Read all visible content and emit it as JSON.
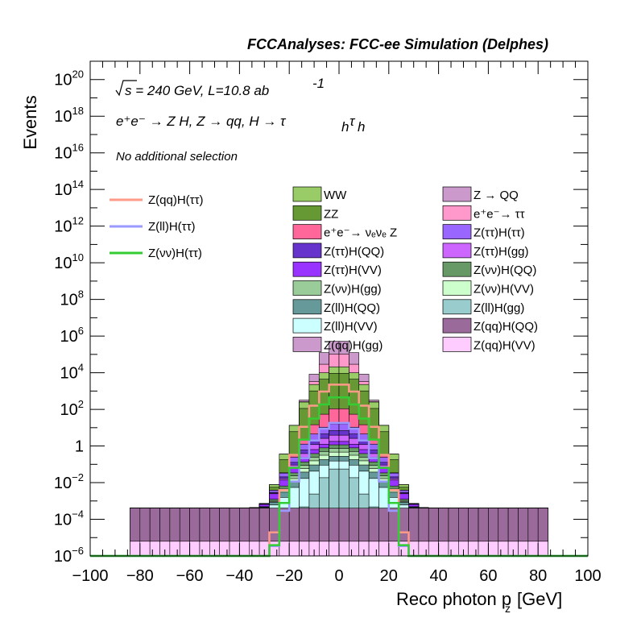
{
  "chart_data": {
    "type": "histogram",
    "title": "FCCAnalyses: FCC-ee Simulation (Delphes)",
    "xlabel": "Reco photon p",
    "xlabel_subscript": "z",
    "xlabel_unit": "[GeV]",
    "ylabel": "Events",
    "y_scale": "log",
    "xlim": [
      -100,
      100
    ],
    "ylim": [
      1e-06,
      1e+21
    ],
    "x_ticks": [
      "−100",
      "−80",
      "−60",
      "−40",
      "−20",
      "0",
      "20",
      "40",
      "60",
      "80",
      "100"
    ],
    "y_ticks": [
      {
        "base": "10",
        "exp": "−6"
      },
      {
        "base": "10",
        "exp": "−4"
      },
      {
        "base": "10",
        "exp": "−2"
      },
      {
        "base": "1",
        "exp": ""
      },
      {
        "base": "10",
        "exp": "2"
      },
      {
        "base": "10",
        "exp": "4"
      },
      {
        "base": "10",
        "exp": "6"
      },
      {
        "base": "10",
        "exp": "8"
      },
      {
        "base": "10",
        "exp": "10"
      },
      {
        "base": "10",
        "exp": "12"
      },
      {
        "base": "10",
        "exp": "14"
      },
      {
        "base": "10",
        "exp": "16"
      },
      {
        "base": "10",
        "exp": "18"
      },
      {
        "base": "10",
        "exp": "20"
      }
    ],
    "annotations": {
      "energy": "s = 240 GeV, L=10.8 ab",
      "energy_exp": "-1",
      "process": "e⁺e⁻ → Z H, Z → qq, H → τ",
      "process_sub1": "h",
      "process_tau2": "τ",
      "process_sub2": "h",
      "selection": "No additional selection"
    },
    "bin_width": 4,
    "stack_bands": [
      {
        "name": "Z(qq)H(VV)",
        "color": "#ffccff",
        "a": -5.2,
        "b": 0,
        "w": 85
      },
      {
        "name": "Z(qq)H(QQ)",
        "color": "#9a6a9a",
        "a": -3.4,
        "b": 0,
        "w": 85
      },
      {
        "name": "Z(ll)H(gg)",
        "color": "#99cccc",
        "a": -1.2,
        "b": 0.015,
        "w": 85
      },
      {
        "name": "Z(ll)H(VV)",
        "color": "#ccffff",
        "a": -1.0,
        "b": 0.004,
        "w": 85
      },
      {
        "name": "Z(ll)H(QQ)",
        "color": "#669999",
        "a": -0.9,
        "b": 0.004,
        "w": 85
      },
      {
        "name": "Z(νν)H(VV)",
        "color": "#ccffcc",
        "a": -0.7,
        "b": 0.005,
        "w": 85
      },
      {
        "name": "Z(νν)H(gg)",
        "color": "#99cc99",
        "a": -0.55,
        "b": 0.005,
        "w": 85
      },
      {
        "name": "Z(νν)H(QQ)",
        "color": "#669966",
        "a": -0.35,
        "b": 0.005,
        "w": 85
      },
      {
        "name": "Z(ττ)H(VV)",
        "color": "#9933ff",
        "a": -0.2,
        "b": 0.004,
        "w": 85
      },
      {
        "name": "Z(ττ)H(gg)",
        "color": "#cc66ff",
        "a": 0.35,
        "b": 0.006,
        "w": 70
      },
      {
        "name": "Z(ττ)H(QQ)",
        "color": "#6633cc",
        "a": 0.5,
        "b": 0.006,
        "w": 70
      },
      {
        "name": "Z(ττ)H(ττ)",
        "color": "#9966ff",
        "a": 1.0,
        "b": 0.006,
        "w": 70
      },
      {
        "name": "e⁺e⁻→ ννZ",
        "color": "#ff6699",
        "a": 2.0,
        "b": 0.01,
        "w": 82
      },
      {
        "name": "ZZ",
        "color": "#669933",
        "a": 4.0,
        "b": 0.01,
        "w": 95
      },
      {
        "name": "WW",
        "color": "#99cc66",
        "a": 4.1,
        "b": 0.01,
        "w": 100
      },
      {
        "name": "e⁺e⁻ → ττ",
        "color": "#ff99cc",
        "a": 5.0,
        "b": 0.02,
        "w": 100
      },
      {
        "name": "Z → QQ",
        "color": "#cc99cc",
        "a": 5.7,
        "b": 0.02,
        "w": 100
      }
    ],
    "signal_lines": [
      {
        "name": "Z(qq)H(ττ)",
        "color": "#ff9988",
        "a": 3.4,
        "b": 0.012,
        "w": 76
      },
      {
        "name": "Z(ll)H(ττ)",
        "color": "#9999ff",
        "a": 1.3,
        "b": 0.01,
        "w": 76
      },
      {
        "name": "Z(νν)H(ττ)",
        "color": "#33cc33",
        "a": 2.7,
        "b": 0.012,
        "w": 76
      }
    ],
    "legend_signals": [
      "Z(qq)H(ττ)",
      "Z(ll)H(ττ)",
      "Z(νν)H(ττ)"
    ],
    "legend_col1": [
      {
        "name": "WW",
        "color": "#99cc66"
      },
      {
        "name": "ZZ",
        "color": "#669933"
      },
      {
        "name": "e⁺e⁻→ νₑνₑ Z",
        "color": "#ff6699"
      },
      {
        "name": "Z(ττ)H(QQ)",
        "color": "#6633cc"
      },
      {
        "name": "Z(ττ)H(VV)",
        "color": "#9933ff"
      },
      {
        "name": "Z(νν)H(gg)",
        "color": "#99cc99"
      },
      {
        "name": "Z(ll)H(QQ)",
        "color": "#669999"
      },
      {
        "name": "Z(ll)H(VV)",
        "color": "#ccffff"
      },
      {
        "name": "Z(qq)H(gg)",
        "color": "#cc99cc"
      }
    ],
    "legend_col2": [
      {
        "name": "Z → QQ",
        "color": "#cc99cc"
      },
      {
        "name": "e⁺e⁻→ ττ",
        "color": "#ff99cc"
      },
      {
        "name": "Z(ττ)H(ττ)",
        "color": "#9966ff"
      },
      {
        "name": "Z(ττ)H(gg)",
        "color": "#cc66ff"
      },
      {
        "name": "Z(νν)H(QQ)",
        "color": "#669966"
      },
      {
        "name": "Z(νν)H(VV)",
        "color": "#ccffcc"
      },
      {
        "name": "Z(ll)H(gg)",
        "color": "#99cccc"
      },
      {
        "name": "Z(qq)H(QQ)",
        "color": "#9a6a9a"
      },
      {
        "name": "Z(qq)H(VV)",
        "color": "#ffccff"
      }
    ]
  }
}
